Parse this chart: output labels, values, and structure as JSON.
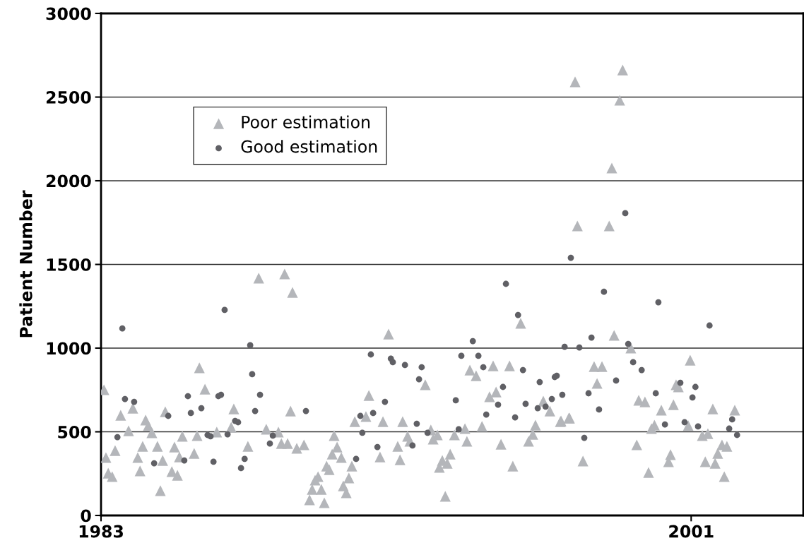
{
  "chart_data": {
    "type": "scatter",
    "ylabel": "Patient Number",
    "xlim": [
      1983,
      2004.42
    ],
    "xticks": [
      1983,
      2001
    ],
    "ylim": [
      0,
      3000
    ],
    "yticks": [
      0,
      500,
      1000,
      1500,
      2000,
      2500,
      3000
    ],
    "grid": "y",
    "legend": "top left",
    "series": [
      {
        "name": "Poor estimation",
        "color": "#b4b6ba",
        "marker": "triangle",
        "x": [
          1983.09,
          1983.6,
          1983.97,
          1984.36,
          1984.44,
          1984.55,
          1983.84,
          1983.43,
          1983.15,
          1984.12,
          1984.27,
          1984.72,
          1983.22,
          1983.34,
          1984.19,
          1984.81,
          1984.88,
          1984.96,
          1985.24,
          1985.16,
          1985.33,
          1985.39,
          1985.48,
          1985.84,
          1985.93,
          1986.0,
          1986.17,
          1986.53,
          1986.97,
          1987.05,
          1987.48,
          1987.81,
          1988.6,
          1988.84,
          1988.04,
          1988.41,
          1988.5,
          1988.69,
          1988.78,
          1988.97,
          1989.19,
          1990.11,
          1990.2,
          1990.05,
          1989.88,
          1989.96,
          1989.62,
          1989.53,
          1989.44,
          1989.72,
          1989.36,
          1989.81,
          1990.33,
          1990.65,
          1990.56,
          1990.39,
          1990.48,
          1990.74,
          1991.08,
          1991.17,
          1991.51,
          1991.6,
          1991.77,
          1992.05,
          1992.12,
          1992.2,
          1992.35,
          1992.42,
          1992.89,
          1993.06,
          1993.13,
          1993.26,
          1993.32,
          1993.41,
          1993.56,
          1993.65,
          1993.5,
          1993.78,
          1994.1,
          1994.16,
          1994.25,
          1994.44,
          1994.62,
          1994.85,
          1995.05,
          1994.96,
          1995.2,
          1995.46,
          1995.56,
          1995.8,
          1996.04,
          1996.17,
          1996.25,
          1996.49,
          1996.69,
          1997.01,
          1997.27,
          1997.46,
          1998.91,
          1998.82,
          1998.58,
          1997.53,
          1998.5,
          1998.65,
          1999.16,
          1998.04,
          1998.28,
          1998.13,
          1997.03,
          1997.29,
          1997.7,
          1999.34,
          1999.4,
          1999.59,
          1999.7,
          1999.79,
          1999.88,
          2000.09,
          2000.31,
          2000.37,
          2000.46,
          2000.54,
          2000.61,
          2000.91,
          2000.97,
          2001.34,
          2001.51,
          2001.43,
          2001.66,
          2001.73,
          2001.81,
          2001.94,
          2002.09,
          2002.01,
          2002.33
        ],
        "values": [
          751,
          599,
          641,
          570,
          536,
          494,
          506,
          388,
          346,
          346,
          413,
          413,
          253,
          232,
          266,
          148,
          329,
          620,
          409,
          262,
          240,
          350,
          473,
          371,
          477,
          882,
          755,
          498,
          527,
          637,
          413,
          1418,
          1443,
          1333,
          515,
          498,
          430,
          430,
          624,
          401,
          422,
          477,
          409,
          367,
          295,
          274,
          232,
          211,
          156,
          156,
          93,
          76,
          346,
          295,
          224,
          177,
          135,
          561,
          591,
          717,
          350,
          561,
          1084,
          413,
          333,
          561,
          473,
          443,
          781,
          511,
          456,
          481,
          287,
          329,
          312,
          367,
          114,
          481,
          519,
          443,
          869,
          835,
          532,
          709,
          738,
          894,
          426,
          894,
          295,
          1148,
          443,
          485,
          540,
          683,
          624,
          561,
          582,
          2591,
          2662,
          2481,
          2076,
          1730,
          1730,
          1076,
          1000,
          890,
          890,
          789,
          565,
          582,
          325,
          422,
          688,
          679,
          257,
          519,
          540,
          629,
          321,
          363,
          662,
          781,
          768,
          536,
          928,
          477,
          489,
          321,
          637,
          312,
          371,
          422,
          413,
          232,
          629
        ]
      },
      {
        "name": "Good estimation",
        "color": "#606065",
        "marker": "circle",
        "x": [
          1983.65,
          1983.73,
          1984.01,
          1983.5,
          1984.62,
          1985.05,
          1985.65,
          1985.74,
          1986.06,
          1985.54,
          1986.25,
          1986.34,
          1986.43,
          1986.58,
          1986.66,
          1986.77,
          1986.86,
          1987.09,
          1987.18,
          1987.27,
          1987.38,
          1987.55,
          1987.61,
          1987.7,
          1987.85,
          1988.15,
          1988.24,
          1989.25,
          1990.78,
          1990.97,
          1990.91,
          1991.3,
          1991.43,
          1991.23,
          1991.66,
          1991.84,
          1991.9,
          1992.27,
          1992.5,
          1992.63,
          1992.7,
          1992.78,
          1992.96,
          1993.82,
          1993.91,
          1993.99,
          1994.34,
          1994.51,
          1994.66,
          1994.75,
          1995.11,
          1995.26,
          1995.35,
          1995.63,
          1995.72,
          1995.87,
          1995.95,
          1996.32,
          1996.38,
          1996.56,
          1996.75,
          1996.84,
          1996.9,
          1997.07,
          1997.14,
          1997.33,
          1998.34,
          2000.0,
          2001.56,
          1998.99,
          1997.96,
          1997.59,
          1999.08,
          1999.23,
          1999.49,
          1998.71,
          1997.87,
          1999.92,
          2000.67,
          2001.13,
          2001.04,
          1998.19,
          2000.2,
          2000.8,
          2001.21,
          2002.25,
          2002.16,
          2002.4,
          1997.74
        ],
        "values": [
          1118,
          696,
          679,
          468,
          312,
          595,
          713,
          612,
          641,
          329,
          481,
          473,
          321,
          713,
          721,
          1228,
          485,
          565,
          557,
          283,
          338,
          1017,
          844,
          624,
          721,
          430,
          477,
          624,
          338,
          494,
          595,
          612,
          409,
          962,
          679,
          937,
          916,
          899,
          418,
          548,
          814,
          886,
          494,
          688,
          515,
          954,
          1042,
          954,
          886,
          603,
          662,
          768,
          1384,
          586,
          1198,
          869,
          667,
          641,
          797,
          650,
          696,
          827,
          835,
          721,
          1008,
          1540,
          1337,
          1274,
          1135,
          1806,
          1063,
          1004,
          1025,
          916,
          869,
          806,
          730,
          730,
          793,
          768,
          705,
          633,
          544,
          557,
          532,
          574,
          519,
          481,
          464
        ]
      }
    ]
  }
}
